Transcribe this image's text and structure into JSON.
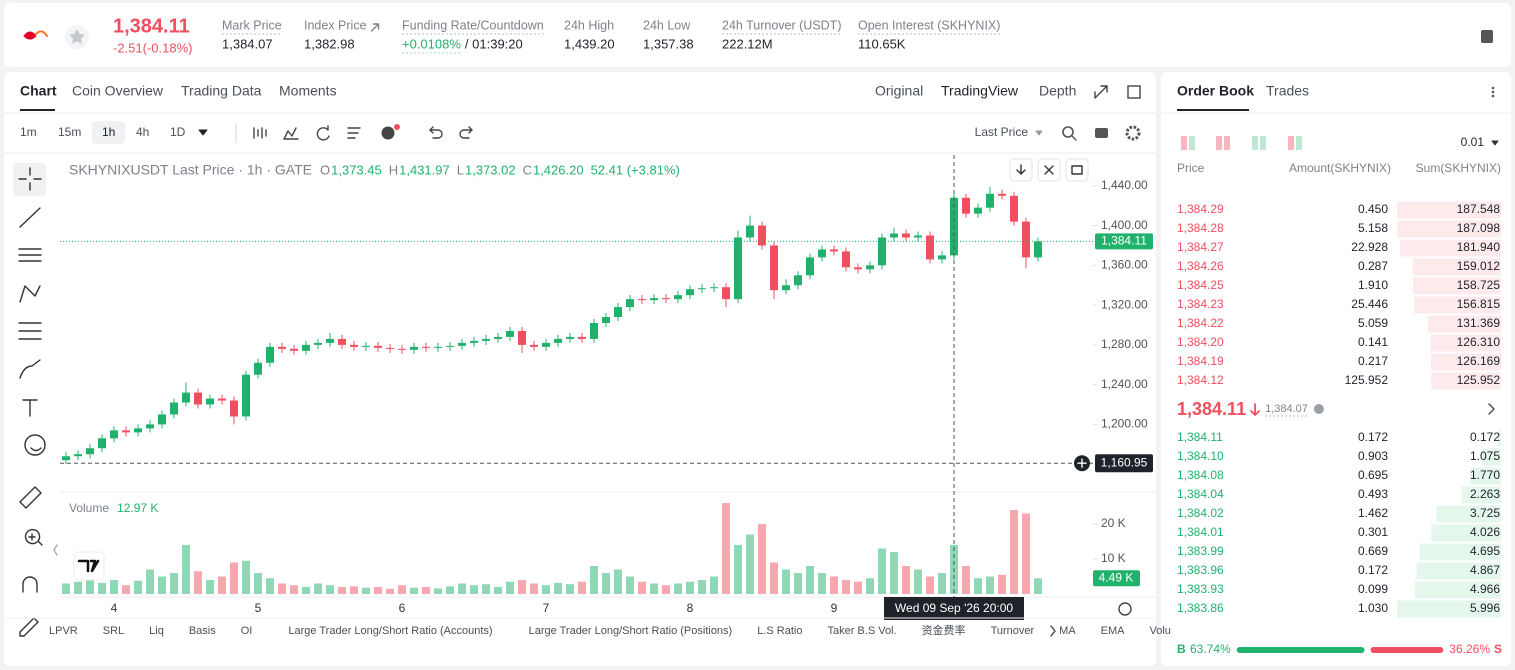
{
  "header": {
    "price": "1,384.11",
    "change": "-2.51(-0.18%)",
    "stats": [
      {
        "label": "Mark Price",
        "value": "1,384.07"
      },
      {
        "label": "Index Price",
        "value": "1,382.98"
      },
      {
        "label": "Funding Rate/Countdown",
        "value": "+0.0108%",
        "countdown": "/ 01:39:20"
      },
      {
        "label": "24h High",
        "value": "1,439.20"
      },
      {
        "label": "24h Low",
        "value": "1,357.38"
      },
      {
        "label": "24h Turnover (USDT)",
        "value": "222.12M"
      },
      {
        "label": "Open Interest (SKHYNIX)",
        "value": "110.65K"
      }
    ]
  },
  "chart_panel": {
    "tabs": [
      "Chart",
      "Coin Overview",
      "Trading Data",
      "Moments"
    ],
    "views": [
      "Original",
      "TradingView",
      "Depth"
    ],
    "intervals": [
      "1m",
      "15m",
      "1h",
      "4h",
      "1D"
    ],
    "price_source": "Last Price",
    "indicators": [
      "LPVR",
      "SRL",
      "Liq",
      "Basis",
      "OI",
      "Large Trader Long/Short Ratio (Accounts)",
      "Large Trader Long/Short Ratio (Positions)",
      "L.S Ratio",
      "Taker B.S Vol.",
      "资金费率",
      "Turnover",
      "MA",
      "EMA",
      "Volu"
    ]
  },
  "chart_data": {
    "type": "candlestick",
    "title": "SKHYNIXUSDT Last Price · 1h · GATE",
    "ohlc_legend": [
      {
        "key": "O",
        "value": "1,373.45"
      },
      {
        "key": "H",
        "value": "1,431.97"
      },
      {
        "key": "L",
        "value": "1,373.02"
      },
      {
        "key": "C",
        "value": "1,426.20"
      }
    ],
    "change_label": "52.41 (+3.81%)",
    "up_color": "#20b26c",
    "down_color": "#ef4f5e",
    "grid": false,
    "categories": [
      null,
      null,
      null,
      null,
      "4",
      null,
      null,
      null,
      null,
      null,
      null,
      null,
      null,
      null,
      null,
      null,
      "5",
      null,
      null,
      null,
      null,
      null,
      null,
      null,
      null,
      null,
      null,
      null,
      "6",
      null,
      null,
      null,
      null,
      null,
      null,
      null,
      null,
      null,
      null,
      null,
      "7",
      null,
      null,
      null,
      null,
      null,
      null,
      null,
      null,
      null,
      null,
      null,
      "8",
      null,
      null,
      null,
      null,
      null,
      null,
      null,
      null,
      null,
      null,
      null,
      "9",
      null,
      null,
      null,
      null,
      null,
      null,
      null,
      null,
      null,
      null,
      null,
      null,
      null,
      null,
      null,
      null,
      null
    ],
    "open": [
      1164,
      1168,
      1170,
      1176,
      1186,
      1194,
      1192,
      1196,
      1200,
      1210,
      1222,
      1232,
      1220,
      1226,
      1224,
      1208,
      1250,
      1262,
      1278,
      1276,
      1274,
      1280,
      1282,
      1286,
      1280,
      1278,
      1279,
      1277,
      1276,
      1275,
      1278,
      1277,
      1278,
      1279,
      1282,
      1284,
      1286,
      1288,
      1294,
      1280,
      1278,
      1282,
      1286,
      1288,
      1286,
      1302,
      1308,
      1318,
      1326,
      1325,
      1327,
      1326,
      1330,
      1336,
      1337,
      1338,
      1326,
      1388,
      1400,
      1380,
      1335,
      1340,
      1350,
      1368,
      1376,
      1374,
      1358,
      1356,
      1360,
      1388,
      1392,
      1388,
      1390,
      1366,
      1370,
      1428,
      1412,
      1418,
      1432,
      1430,
      1404,
      1368
    ],
    "high": [
      1172,
      1174,
      1180,
      1190,
      1198,
      1198,
      1200,
      1204,
      1214,
      1226,
      1242,
      1236,
      1230,
      1230,
      1228,
      1254,
      1266,
      1282,
      1282,
      1280,
      1284,
      1286,
      1292,
      1290,
      1284,
      1283,
      1283,
      1281,
      1280,
      1282,
      1282,
      1282,
      1283,
      1286,
      1288,
      1290,
      1292,
      1298,
      1298,
      1284,
      1286,
      1290,
      1292,
      1292,
      1306,
      1312,
      1322,
      1330,
      1330,
      1331,
      1331,
      1334,
      1340,
      1341,
      1342,
      1342,
      1395,
      1410,
      1404,
      1384,
      1346,
      1354,
      1372,
      1380,
      1380,
      1378,
      1362,
      1364,
      1392,
      1398,
      1396,
      1394,
      1394,
      1374,
      1434,
      1432,
      1422,
      1439,
      1436,
      1434,
      1408,
      1388
    ],
    "low": [
      1160,
      1164,
      1166,
      1172,
      1182,
      1188,
      1188,
      1192,
      1196,
      1206,
      1218,
      1216,
      1216,
      1220,
      1200,
      1204,
      1246,
      1258,
      1272,
      1270,
      1270,
      1276,
      1278,
      1276,
      1274,
      1274,
      1273,
      1272,
      1271,
      1271,
      1273,
      1273,
      1274,
      1275,
      1278,
      1280,
      1282,
      1284,
      1272,
      1274,
      1274,
      1278,
      1282,
      1282,
      1282,
      1298,
      1304,
      1314,
      1321,
      1321,
      1322,
      1322,
      1326,
      1332,
      1333,
      1318,
      1322,
      1384,
      1376,
      1326,
      1331,
      1336,
      1346,
      1364,
      1370,
      1354,
      1352,
      1352,
      1356,
      1384,
      1384,
      1384,
      1362,
      1362,
      1366,
      1408,
      1408,
      1414,
      1426,
      1400,
      1357,
      1364
    ],
    "close": [
      1168,
      1170,
      1176,
      1186,
      1194,
      1192,
      1196,
      1200,
      1210,
      1222,
      1232,
      1220,
      1226,
      1224,
      1208,
      1250,
      1262,
      1278,
      1276,
      1274,
      1280,
      1282,
      1286,
      1280,
      1278,
      1279,
      1277,
      1276,
      1275,
      1278,
      1277,
      1278,
      1279,
      1282,
      1284,
      1286,
      1288,
      1294,
      1280,
      1278,
      1282,
      1286,
      1288,
      1286,
      1302,
      1308,
      1318,
      1326,
      1325,
      1327,
      1326,
      1330,
      1336,
      1337,
      1338,
      1326,
      1388,
      1400,
      1380,
      1335,
      1340,
      1350,
      1368,
      1376,
      1374,
      1358,
      1356,
      1360,
      1388,
      1392,
      1388,
      1390,
      1366,
      1370,
      1428,
      1412,
      1418,
      1432,
      1430,
      1404,
      1368,
      1384.11
    ],
    "volume": [
      3000,
      3500,
      5500,
      3200,
      4000,
      2500,
      3800,
      7000,
      5000,
      6000,
      14000,
      6500,
      4000,
      5000,
      9000,
      9500,
      6000,
      4500,
      3000,
      2500,
      2000,
      3000,
      2500,
      2000,
      2200,
      1800,
      2000,
      1500,
      2500,
      1800,
      2000,
      1600,
      2200,
      3000,
      2500,
      2800,
      2000,
      3500,
      4000,
      3000,
      2500,
      3200,
      2800,
      3500,
      8000,
      6000,
      7000,
      5000,
      3500,
      3000,
      2500,
      3000,
      3500,
      4000,
      5000,
      26000,
      14000,
      17000,
      20000,
      9000,
      7000,
      6000,
      8000,
      6000,
      5000,
      4000,
      3500,
      4500,
      13000,
      12000,
      8000,
      7000,
      5000,
      6000,
      14000,
      8000,
      4500,
      5000,
      5500,
      24000,
      23000,
      4490
    ],
    "ylim": [
      1134,
      1471
    ],
    "yticks": [
      {
        "value": 1200,
        "label": "1,200.00"
      },
      {
        "value": 1240,
        "label": "1,240.00"
      },
      {
        "value": 1280,
        "label": "1,280.00"
      },
      {
        "value": 1320,
        "label": "1,320.00"
      },
      {
        "value": 1360,
        "label": "1,360.00"
      },
      {
        "value": 1400,
        "label": "1,400.00"
      },
      {
        "value": 1440,
        "label": "1,440.00"
      }
    ],
    "y2lim": [
      0,
      28286
    ],
    "y2ticks": [
      {
        "value": 10000,
        "label": "10 K"
      },
      {
        "value": 20000,
        "label": "20 K"
      }
    ],
    "last_price": {
      "value": 1384.11,
      "label": "1,384.11"
    },
    "marker_price": {
      "value": 1160.95,
      "label": "1,160.95"
    },
    "volume_title": "Volume",
    "volume_total": "12.97 K",
    "volume_last_label": "4.49 K",
    "crosshair_label": "Wed 09 Sep '26   20:00"
  },
  "order_book": {
    "tabs": [
      "Order Book",
      "Trades"
    ],
    "precision": "0.01",
    "columns": [
      "Price",
      "Amount(SKHYNIX)",
      "Sum(SKHYNIX)"
    ],
    "asks": [
      [
        "1,384.29",
        "0.450",
        "187.548"
      ],
      [
        "1,384.28",
        "5.158",
        "187.098"
      ],
      [
        "1,384.27",
        "22.928",
        "181.940"
      ],
      [
        "1,384.26",
        "0.287",
        "159.012"
      ],
      [
        "1,384.25",
        "1.910",
        "158.725"
      ],
      [
        "1,384.23",
        "25.446",
        "156.815"
      ],
      [
        "1,384.22",
        "5.059",
        "131.369"
      ],
      [
        "1,384.20",
        "0.141",
        "126.310"
      ],
      [
        "1,384.19",
        "0.217",
        "126.169"
      ],
      [
        "1,384.12",
        "125.952",
        "125.952"
      ]
    ],
    "last_price": "1,384.11",
    "mark_price": "1,384.07",
    "bids": [
      [
        "1,384.11",
        "0.172",
        "0.172"
      ],
      [
        "1,384.10",
        "0.903",
        "1.075"
      ],
      [
        "1,384.08",
        "0.695",
        "1.770"
      ],
      [
        "1,384.04",
        "0.493",
        "2.263"
      ],
      [
        "1,384.02",
        "1.462",
        "3.725"
      ],
      [
        "1,384.01",
        "0.301",
        "4.026"
      ],
      [
        "1,383.99",
        "0.669",
        "4.695"
      ],
      [
        "1,383.96",
        "0.172",
        "4.867"
      ],
      [
        "1,383.93",
        "0.099",
        "4.966"
      ],
      [
        "1,383.86",
        "1.030",
        "5.996"
      ]
    ],
    "buy_label": "B",
    "buy_ratio": "63.74%",
    "sell_ratio": "36.26%",
    "sell_label": "S"
  }
}
